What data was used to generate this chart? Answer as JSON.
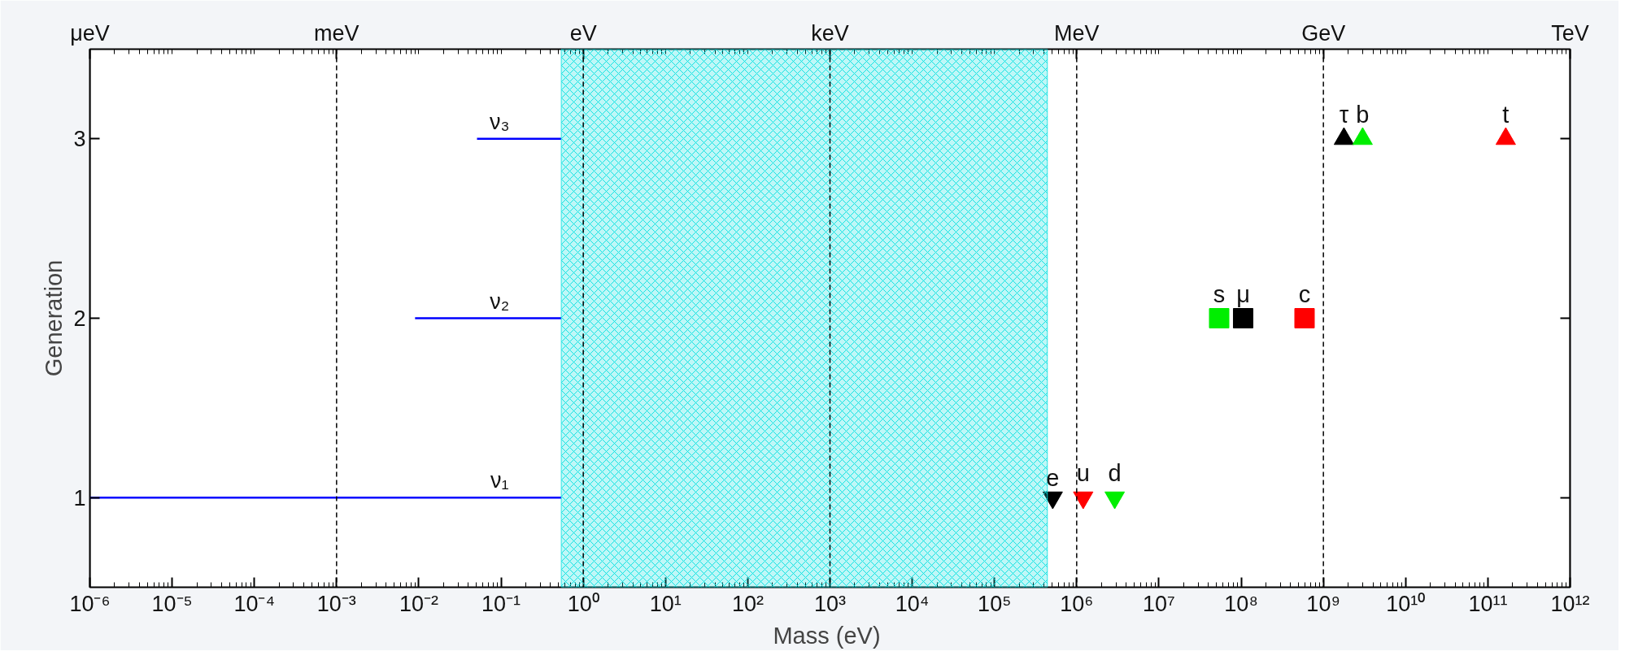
{
  "chart_data": {
    "type": "scatter",
    "xlabel": "Mass  (eV)",
    "ylabel": "Generation",
    "log": "x",
    "xlim": [
      1e-06,
      1000000000000.0
    ],
    "xticks": [
      {
        "value": 1e-06,
        "label": "10⁻⁶"
      },
      {
        "value": 1e-05,
        "label": "10⁻⁵"
      },
      {
        "value": 0.0001,
        "label": "10⁻⁴"
      },
      {
        "value": 0.001,
        "label": "10⁻³"
      },
      {
        "value": 0.01,
        "label": "10⁻²"
      },
      {
        "value": 0.1,
        "label": "10⁻¹"
      },
      {
        "value": 1,
        "label": "10⁰"
      },
      {
        "value": 10,
        "label": "10¹"
      },
      {
        "value": 100,
        "label": "10²"
      },
      {
        "value": 1000,
        "label": "10³"
      },
      {
        "value": 10000.0,
        "label": "10⁴"
      },
      {
        "value": 100000.0,
        "label": "10⁵"
      },
      {
        "value": 1000000.0,
        "label": "10⁶"
      },
      {
        "value": 10000000.0,
        "label": "10⁷"
      },
      {
        "value": 100000000.0,
        "label": "10⁸"
      },
      {
        "value": 1000000000.0,
        "label": "10⁹"
      },
      {
        "value": 10000000000.0,
        "label": "10¹⁰"
      },
      {
        "value": 100000000000.0,
        "label": "10¹¹"
      },
      {
        "value": 1000000000000.0,
        "label": "10¹²"
      }
    ],
    "ylim": [
      0.5,
      3.5
    ],
    "yticks": [
      1,
      2,
      3
    ],
    "grid": false,
    "ref_lines": [
      {
        "axis": "x",
        "value": 1e-06,
        "label": "μeV",
        "line_style": "solid",
        "color": "#000000"
      },
      {
        "axis": "x",
        "value": 0.001,
        "label": "meV",
        "line_style": "dashed",
        "color": "#000000"
      },
      {
        "axis": "x",
        "value": 1,
        "label": "eV",
        "line_style": "dashed",
        "color": "#000000"
      },
      {
        "axis": "x",
        "value": 1000,
        "label": "keV",
        "line_style": "dashed",
        "color": "#000000"
      },
      {
        "axis": "x",
        "value": 1000000.0,
        "label": "MeV",
        "line_style": "dashed",
        "color": "#000000"
      },
      {
        "axis": "x",
        "value": 1000000000.0,
        "label": "GeV",
        "line_style": "dashed",
        "color": "#000000"
      },
      {
        "axis": "x",
        "value": 1000000000000.0,
        "label": "TeV",
        "line_style": "solid",
        "color": "#000000"
      }
    ],
    "bands": [
      {
        "axis": "x",
        "from": 0.54,
        "to": 440000,
        "color": "#00e0e0"
      }
    ],
    "series": [
      {
        "name": "ν₁",
        "type": "line",
        "color": "#0000ff",
        "x": [
          1e-06,
          0.54
        ],
        "values": [
          1,
          1
        ]
      },
      {
        "name": "ν₂",
        "type": "line",
        "color": "#0000ff",
        "x": [
          0.009,
          0.54
        ],
        "values": [
          2,
          2
        ]
      },
      {
        "name": "ν₃",
        "type": "line",
        "color": "#0000ff",
        "x": [
          0.051,
          0.54
        ],
        "values": [
          3,
          3
        ]
      },
      {
        "name": "e",
        "marker": "triangle_down",
        "color": "#000000",
        "x": [
          511000
        ],
        "values": [
          1
        ]
      },
      {
        "name": "u",
        "marker": "triangle_down",
        "color": "#ff0000",
        "x": [
          1200000
        ],
        "values": [
          1
        ]
      },
      {
        "name": "d",
        "marker": "triangle_down",
        "color": "#00ee00",
        "x": [
          2900000
        ],
        "values": [
          1
        ]
      },
      {
        "name": "s",
        "marker": "square",
        "color": "#00ee00",
        "x": [
          54000000
        ],
        "values": [
          2
        ]
      },
      {
        "name": "μ",
        "marker": "square",
        "color": "#000000",
        "x": [
          105700000
        ],
        "values": [
          2
        ]
      },
      {
        "name": "c",
        "marker": "square",
        "color": "#ff0000",
        "x": [
          590000000
        ],
        "values": [
          2
        ]
      },
      {
        "name": "τ",
        "marker": "triangle",
        "color": "#000000",
        "x": [
          1777000000
        ],
        "values": [
          3
        ]
      },
      {
        "name": "b",
        "marker": "triangle",
        "color": "#00ee00",
        "x": [
          3000000000
        ],
        "values": [
          3
        ]
      },
      {
        "name": "t",
        "marker": "triangle",
        "color": "#ff0000",
        "x": [
          165000000000
        ],
        "values": [
          3
        ]
      }
    ]
  }
}
